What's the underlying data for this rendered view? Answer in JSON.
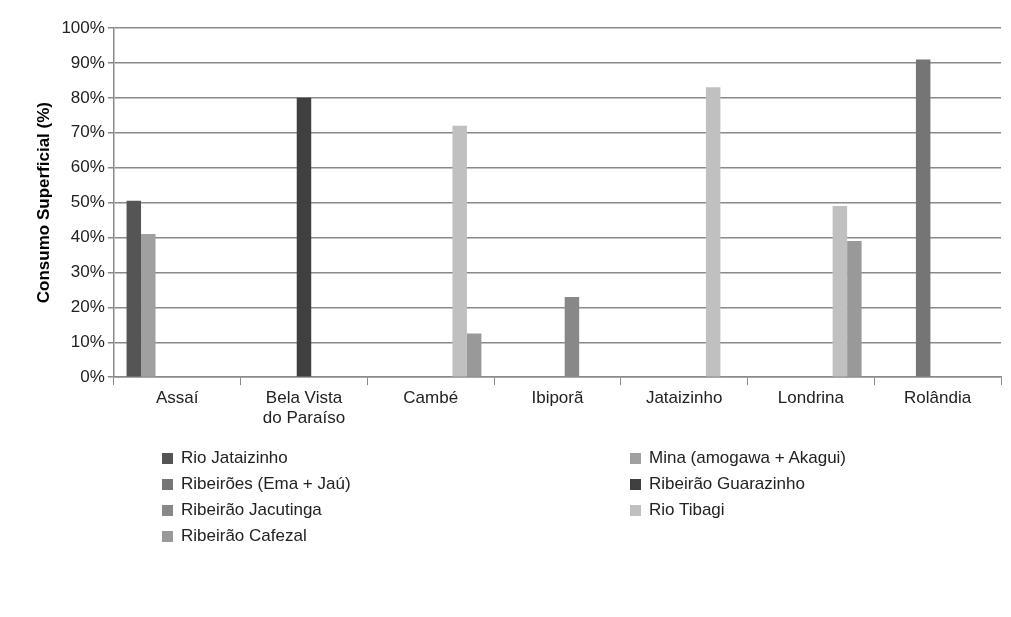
{
  "chart_data": {
    "type": "bar",
    "ylabel": "Consumo Superficial (%)",
    "categories": [
      "Assaí",
      "Bela Vista do Paraíso",
      "Cambé",
      "Ibiporã",
      "Jataizinho",
      "Londrina",
      "Rolândia"
    ],
    "series": [
      {
        "name": "Rio Jataizinho",
        "color": "#555555",
        "values": [
          50.5,
          null,
          null,
          null,
          null,
          null,
          null
        ]
      },
      {
        "name": "Mina (amogawa + Akagui)",
        "color": "#a0a0a0",
        "values": [
          41,
          null,
          null,
          null,
          null,
          null,
          null
        ]
      },
      {
        "name": "Ribeirões (Ema + Jaú)",
        "color": "#757575",
        "values": [
          null,
          null,
          null,
          null,
          null,
          null,
          91
        ]
      },
      {
        "name": "Ribeirão Guarazinho",
        "color": "#404040",
        "values": [
          null,
          80,
          null,
          null,
          null,
          null,
          null
        ]
      },
      {
        "name": "Ribeirão Jacutinga",
        "color": "#888888",
        "values": [
          null,
          null,
          null,
          23,
          null,
          null,
          null
        ]
      },
      {
        "name": "Rio Tibagi",
        "color": "#c0c0c0",
        "values": [
          null,
          null,
          72,
          null,
          83,
          49,
          null
        ]
      },
      {
        "name": "Ribeirão Cafezal",
        "color": "#999999",
        "values": [
          null,
          null,
          12.5,
          null,
          null,
          39,
          null
        ]
      }
    ],
    "ylim": [
      0,
      100
    ],
    "yticks": [
      {
        "value": 0,
        "label": "0%"
      },
      {
        "value": 10,
        "label": "10%"
      },
      {
        "value": 20,
        "label": "20%"
      },
      {
        "value": 30,
        "label": "30%"
      },
      {
        "value": 40,
        "label": "40%"
      },
      {
        "value": 50,
        "label": "50%"
      },
      {
        "value": 60,
        "label": "60%"
      },
      {
        "value": 70,
        "label": "70%"
      },
      {
        "value": 80,
        "label": "80%"
      },
      {
        "value": 90,
        "label": "90%"
      },
      {
        "value": 100,
        "label": "100%"
      }
    ],
    "grid": "y",
    "legend": "bottom"
  }
}
